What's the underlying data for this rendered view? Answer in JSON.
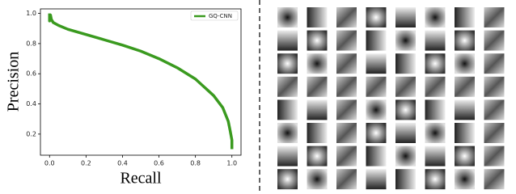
{
  "chart_data": {
    "type": "line",
    "x_label": "Recall",
    "y_label": "Precision",
    "x": [
      0,
      0,
      0.005,
      0.01,
      0.02,
      0.05,
      0.1,
      0.2,
      0.3,
      0.4,
      0.5,
      0.6,
      0.7,
      0.8,
      0.9,
      0.95,
      0.98,
      0.99,
      1.0,
      1.0
    ],
    "series": [
      {
        "name": "GQ-CNN",
        "color": "#3a9a1f",
        "values": [
          1.0,
          0.95,
          0.99,
          0.96,
          0.94,
          0.92,
          0.895,
          0.86,
          0.825,
          0.79,
          0.75,
          0.7,
          0.64,
          0.565,
          0.455,
          0.375,
          0.285,
          0.225,
          0.16,
          0.1
        ]
      }
    ],
    "xlim": [
      -0.05,
      1.05
    ],
    "ylim": [
      0.06,
      1.03
    ],
    "xticks": [
      {
        "value": 0,
        "label": "0.0"
      },
      0.2,
      0.4,
      0.6,
      0.8,
      {
        "value": 1,
        "label": "1.0"
      }
    ],
    "yticks": [
      0.2,
      0.4,
      0.6,
      0.8,
      {
        "value": 1,
        "label": "1.0"
      }
    ],
    "legend": "upper right"
  }
}
